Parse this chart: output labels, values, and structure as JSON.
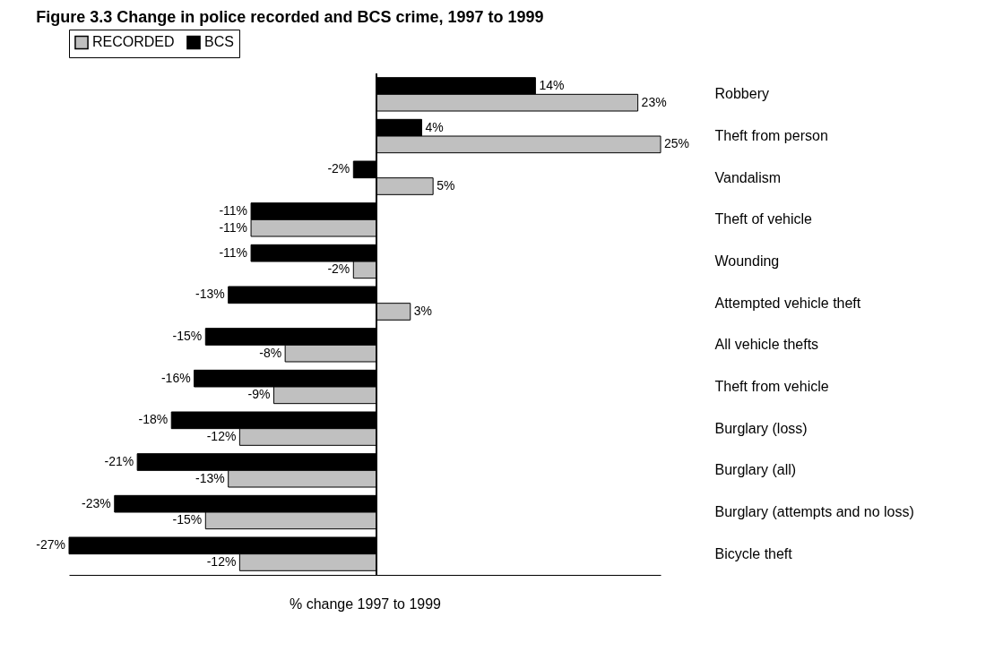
{
  "chart_data": {
    "type": "bar",
    "orientation": "horizontal",
    "title": "Figure 3.3 Change in police recorded and BCS crime, 1997 to 1999",
    "xlabel": "% change 1997 to 1999",
    "categories": [
      "Robbery",
      "Theft from person",
      "Vandalism",
      "Theft of vehicle",
      "Wounding",
      "Attempted vehicle theft",
      "All vehicle thefts",
      "Theft from vehicle",
      "Burglary (loss)",
      "Burglary (all)",
      "Burglary (attempts and no loss)",
      "Bicycle theft"
    ],
    "series": [
      {
        "name": "BCS",
        "color": "#000000",
        "values": [
          14,
          4,
          -2,
          -11,
          -11,
          -13,
          -15,
          -16,
          -18,
          -21,
          -23,
          -27
        ],
        "value_labels": [
          "14%",
          "4%",
          "-2%",
          "-11%",
          "-11%",
          "-13%",
          "-15%",
          "-16%",
          "-18%",
          "-21%",
          "-23%",
          "-27%"
        ]
      },
      {
        "name": "RECORDED",
        "color": "#c0c0c0",
        "values": [
          23,
          25,
          5,
          -11,
          -2,
          3,
          -8,
          -9,
          -12,
          -13,
          -15,
          -12
        ],
        "value_labels": [
          "23%",
          "25%",
          "5%",
          "-11%",
          "-2%",
          "3%",
          "-8%",
          "-9%",
          "-12%",
          "-13%",
          "-15%",
          "-12%"
        ]
      }
    ],
    "legend": "top",
    "grid": false,
    "tick_labels": "y"
  }
}
